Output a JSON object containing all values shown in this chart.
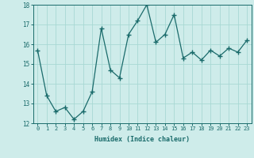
{
  "x": [
    0,
    1,
    2,
    3,
    4,
    5,
    6,
    7,
    8,
    9,
    10,
    11,
    12,
    13,
    14,
    15,
    16,
    17,
    18,
    19,
    20,
    21,
    22,
    23
  ],
  "y": [
    15.7,
    13.4,
    12.6,
    12.8,
    12.2,
    12.6,
    13.6,
    16.8,
    14.7,
    14.3,
    16.5,
    17.2,
    18.0,
    16.1,
    16.5,
    17.5,
    15.3,
    15.6,
    15.2,
    15.7,
    15.4,
    15.8,
    15.6,
    16.2
  ],
  "xlabel": "Humidex (Indice chaleur)",
  "ylim": [
    12,
    18
  ],
  "xlim": [
    -0.5,
    23.5
  ],
  "yticks": [
    12,
    13,
    14,
    15,
    16,
    17,
    18
  ],
  "xticks": [
    0,
    1,
    2,
    3,
    4,
    5,
    6,
    7,
    8,
    9,
    10,
    11,
    12,
    13,
    14,
    15,
    16,
    17,
    18,
    19,
    20,
    21,
    22,
    23
  ],
  "line_color": "#1a6b6b",
  "marker": "+",
  "bg_color": "#ceecea",
  "grid_color": "#a8d8d4",
  "tick_label_color": "#1a6b6b",
  "axis_color": "#1a6b6b",
  "xlabel_color": "#1a6b6b",
  "font_family": "monospace",
  "tick_fontsize": 5.0,
  "xlabel_fontsize": 6.0
}
